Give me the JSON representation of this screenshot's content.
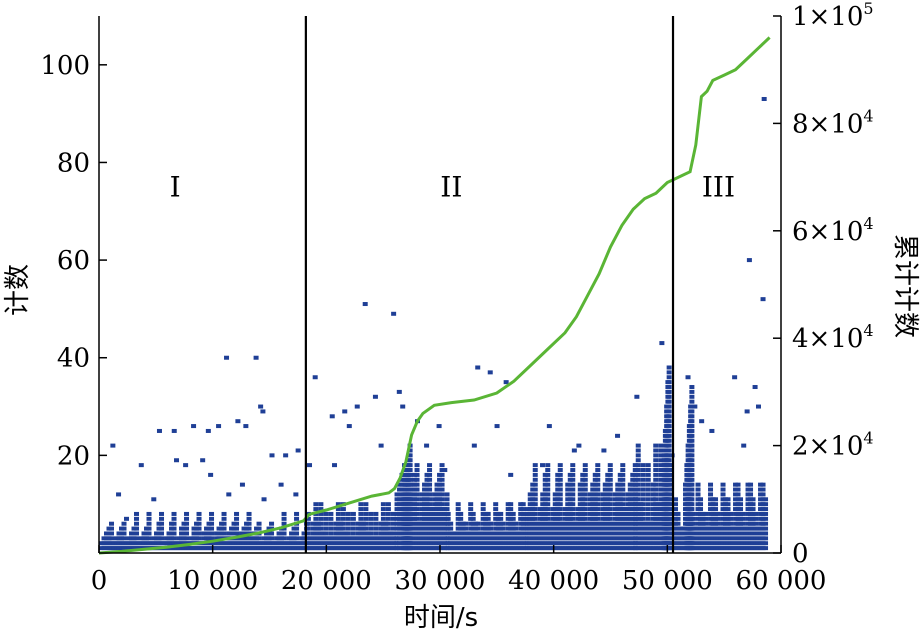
{
  "chart_data": {
    "type": "scatter",
    "xlabel": "时间/s",
    "ylabel": "计数",
    "y2label": "累计计数",
    "xlim": [
      0,
      60000
    ],
    "ylim": [
      0,
      110
    ],
    "y2lim": [
      0,
      100000
    ],
    "x_ticks": [
      0,
      10000,
      20000,
      30000,
      40000,
      50000,
      60000
    ],
    "x_tick_labels": [
      "0",
      "10 000",
      "20 000",
      "30 000",
      "40 000",
      "50 000",
      "60 000"
    ],
    "y_ticks": [
      20,
      40,
      60,
      80,
      100
    ],
    "y_tick_labels": [
      "20",
      "40",
      "60",
      "80",
      "100"
    ],
    "y2_ticks": [
      0,
      20000,
      40000,
      60000,
      80000,
      100000
    ],
    "y2_tick_labels": [
      {
        "base": "0",
        "exp": ""
      },
      {
        "base": "2×10",
        "exp": "4"
      },
      {
        "base": "4×10",
        "exp": "4"
      },
      {
        "base": "6×10",
        "exp": "4"
      },
      {
        "base": "8×10",
        "exp": "4"
      },
      {
        "base": "1×10",
        "exp": "5"
      }
    ],
    "stage_boundaries": [
      18200,
      50500
    ],
    "stage_labels": [
      {
        "text": "I",
        "x": 6700,
        "y": 73
      },
      {
        "text": "II",
        "x": 31000,
        "y": 73
      },
      {
        "text": "III",
        "x": 54500,
        "y": 73
      }
    ],
    "grid": false,
    "colors": {
      "counts": "#1f3f96",
      "cumulative": "#5ab535",
      "boundary": "#000000"
    },
    "counts_series": {
      "name": "计数",
      "points": [
        [
          1000,
          22
        ],
        [
          3500,
          18
        ],
        [
          5100,
          25
        ],
        [
          6400,
          25
        ],
        [
          6600,
          19
        ],
        [
          8100,
          26
        ],
        [
          8900,
          19
        ],
        [
          9400,
          25
        ],
        [
          10300,
          26
        ],
        [
          11000,
          40
        ],
        [
          12000,
          27
        ],
        [
          12700,
          26
        ],
        [
          13600,
          40
        ],
        [
          14000,
          30
        ],
        [
          14200,
          29
        ],
        [
          15000,
          20
        ],
        [
          16200,
          20
        ],
        [
          17300,
          21
        ],
        [
          18300,
          18
        ],
        [
          18800,
          36
        ],
        [
          20300,
          28
        ],
        [
          21400,
          29
        ],
        [
          21800,
          26
        ],
        [
          22500,
          30
        ],
        [
          23200,
          51
        ],
        [
          24100,
          32
        ],
        [
          25700,
          49
        ],
        [
          26200,
          33
        ],
        [
          26500,
          30
        ],
        [
          29700,
          26
        ],
        [
          33100,
          38
        ],
        [
          34200,
          37
        ],
        [
          34800,
          26
        ],
        [
          35600,
          35
        ],
        [
          39400,
          26
        ],
        [
          42000,
          22
        ],
        [
          45400,
          24
        ],
        [
          47100,
          32
        ],
        [
          49300,
          43
        ],
        [
          51600,
          36
        ],
        [
          52200,
          30
        ],
        [
          53700,
          25
        ],
        [
          55700,
          36
        ],
        [
          57000,
          60
        ],
        [
          57500,
          34
        ],
        [
          58300,
          93
        ],
        [
          58200,
          52
        ],
        [
          57800,
          30
        ],
        [
          56500,
          22
        ],
        [
          56800,
          29
        ],
        [
          52800,
          27
        ],
        [
          50200,
          20
        ],
        [
          44200,
          21
        ],
        [
          41600,
          21
        ],
        [
          38800,
          18
        ],
        [
          36000,
          16
        ],
        [
          32800,
          22
        ],
        [
          30200,
          17
        ],
        [
          27800,
          27
        ],
        [
          28600,
          22
        ],
        [
          24600,
          22
        ],
        [
          20500,
          18
        ],
        [
          17100,
          12
        ],
        [
          15800,
          14
        ],
        [
          14300,
          11
        ],
        [
          12400,
          14
        ],
        [
          11200,
          12
        ],
        [
          9600,
          16
        ],
        [
          7400,
          18
        ],
        [
          4600,
          11
        ],
        [
          2200,
          7
        ],
        [
          1500,
          12
        ]
      ],
      "bands": [
        {
          "x0": 0,
          "x1": 18200,
          "heights": [
            2,
            3,
            4,
            5,
            6,
            8
          ]
        },
        {
          "x0": 18200,
          "x1": 26000,
          "heights": [
            3,
            4,
            6,
            8,
            10
          ]
        },
        {
          "x0": 26000,
          "x1": 30500,
          "heights": [
            6,
            9,
            12,
            14,
            16,
            18
          ]
        },
        {
          "x0": 30500,
          "x1": 37500,
          "heights": [
            4,
            6,
            8,
            10
          ]
        },
        {
          "x0": 37500,
          "x1": 47000,
          "heights": [
            6,
            9,
            12,
            14,
            16,
            18
          ]
        },
        {
          "x0": 47000,
          "x1": 50500,
          "heights": [
            6,
            10,
            14,
            18,
            22
          ]
        },
        {
          "x0": 50500,
          "x1": 58500,
          "heights": [
            5,
            8,
            11,
            14
          ]
        }
      ],
      "peaks": [
        {
          "x": 26600,
          "values": [
            12,
            14,
            16,
            18,
            20,
            22
          ]
        },
        {
          "x": 49500,
          "values": [
            20,
            25,
            30,
            35,
            38
          ]
        },
        {
          "x": 51500,
          "values": [
            18,
            22,
            26,
            30,
            34
          ]
        }
      ]
    },
    "cumulative_series": {
      "name": "累计计数",
      "points": [
        [
          0,
          0
        ],
        [
          2000,
          300
        ],
        [
          4000,
          700
        ],
        [
          6000,
          1100
        ],
        [
          8000,
          1600
        ],
        [
          10000,
          2200
        ],
        [
          12000,
          2900
        ],
        [
          14000,
          3700
        ],
        [
          16000,
          4700
        ],
        [
          18000,
          6000
        ],
        [
          18500,
          7200
        ],
        [
          20000,
          8000
        ],
        [
          22000,
          9300
        ],
        [
          24000,
          10600
        ],
        [
          25500,
          11200
        ],
        [
          26000,
          12000
        ],
        [
          26500,
          14000
        ],
        [
          27000,
          17000
        ],
        [
          27500,
          22000
        ],
        [
          28000,
          24500
        ],
        [
          28500,
          26000
        ],
        [
          29500,
          27500
        ],
        [
          31000,
          28000
        ],
        [
          33000,
          28500
        ],
        [
          35000,
          29800
        ],
        [
          36500,
          32000
        ],
        [
          38000,
          35000
        ],
        [
          39500,
          38000
        ],
        [
          41000,
          41000
        ],
        [
          42000,
          44000
        ],
        [
          43000,
          48000
        ],
        [
          44000,
          52000
        ],
        [
          45000,
          57000
        ],
        [
          46000,
          61000
        ],
        [
          47000,
          64000
        ],
        [
          48000,
          66000
        ],
        [
          49000,
          67000
        ],
        [
          50000,
          69000
        ],
        [
          51000,
          70000
        ],
        [
          52000,
          71000
        ],
        [
          52500,
          76000
        ],
        [
          53000,
          85000
        ],
        [
          53500,
          86000
        ],
        [
          54000,
          88000
        ],
        [
          55000,
          89000
        ],
        [
          56000,
          90000
        ],
        [
          57000,
          92000
        ],
        [
          58000,
          94000
        ],
        [
          59000,
          96000
        ]
      ]
    }
  }
}
